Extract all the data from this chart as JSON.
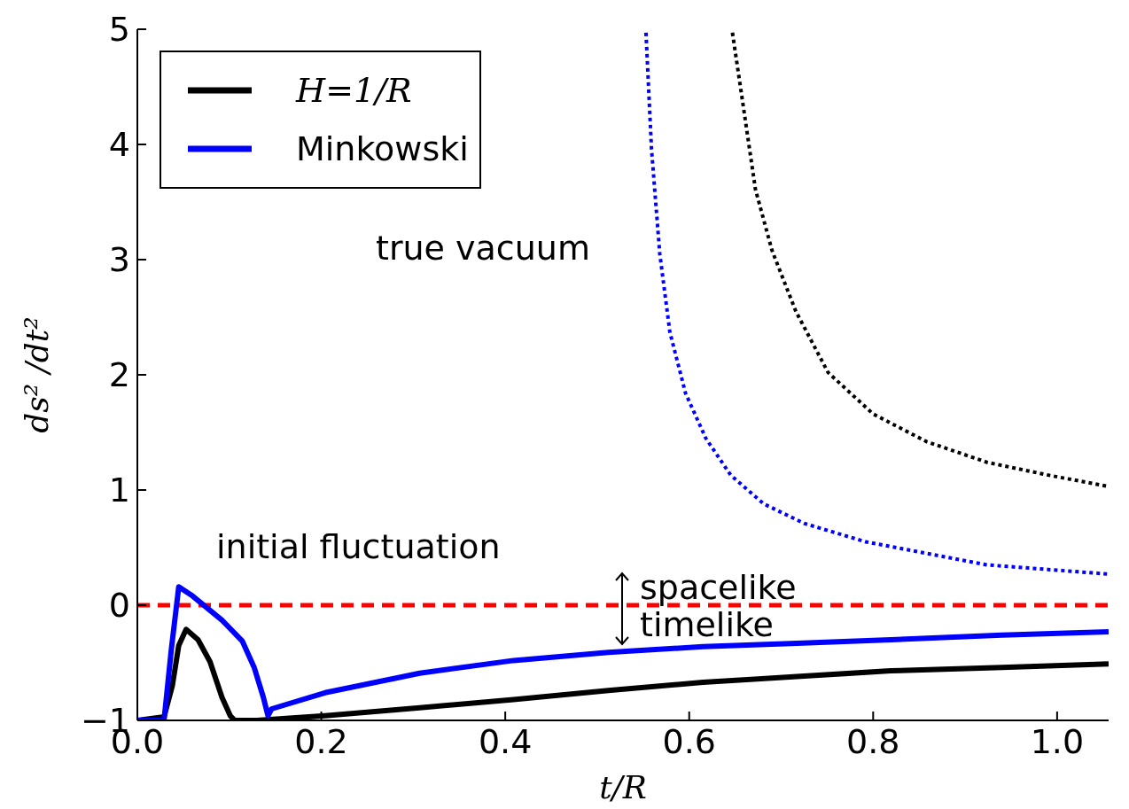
{
  "chart_data": {
    "type": "line",
    "xlabel": "t/R",
    "ylabel": "ds² /dt²",
    "xlim": [
      0,
      1.056
    ],
    "xticks": [
      {
        "value": 0,
        "label": "0.0"
      },
      {
        "value": 0.2,
        "label": "0.2"
      },
      {
        "value": 0.4,
        "label": "0.4"
      },
      {
        "value": 0.6,
        "label": "0.6"
      },
      {
        "value": 0.8,
        "label": "0.8"
      },
      {
        "value": 1,
        "label": "1.0"
      }
    ],
    "ylim": [
      -1,
      5
    ],
    "yticks": [
      {
        "value": -1,
        "label": "−1"
      },
      0,
      1,
      2,
      3,
      4,
      5
    ],
    "legend": "top left",
    "marker": "none",
    "series": [
      {
        "name": "H=1/R",
        "color": "#000000",
        "line_style": "solid",
        "x": [
          0,
          0.029,
          0.038,
          0.045,
          0.053,
          0.066,
          0.079,
          0.092,
          0.101,
          0.106,
          0.13,
          0.204,
          0.307,
          0.409,
          0.512,
          0.615,
          0.717,
          0.819,
          0.94,
          1.056
        ],
        "values": [
          -1,
          -0.97,
          -0.7,
          -0.35,
          -0.21,
          -0.3,
          -0.49,
          -0.8,
          -0.96,
          -1,
          -1,
          -0.96,
          -0.89,
          -0.82,
          -0.74,
          -0.67,
          -0.62,
          -0.57,
          -0.54,
          -0.51
        ]
      },
      {
        "name": "Minkowski",
        "color": "#0000ff",
        "line_style": "solid",
        "x": [
          0,
          0.029,
          0.037,
          0.045,
          0.06,
          0.092,
          0.114,
          0.127,
          0.137,
          0.142,
          0.146,
          0.204,
          0.307,
          0.409,
          0.512,
          0.615,
          0.717,
          0.819,
          0.94,
          1.056
        ],
        "values": [
          -1,
          -1,
          -0.38,
          0.16,
          0.08,
          -0.13,
          -0.31,
          -0.54,
          -0.8,
          -0.96,
          -0.9,
          -0.76,
          -0.59,
          -0.48,
          -0.41,
          -0.36,
          -0.33,
          -0.3,
          -0.26,
          -0.23
        ]
      },
      {
        "color": "#0000ff",
        "line_style": "dotted",
        "x": [
          0.553,
          0.559,
          0.568,
          0.579,
          0.596,
          0.618,
          0.645,
          0.681,
          0.725,
          0.792,
          0.858,
          0.924,
          0.99,
          1.056
        ],
        "values": [
          4.97,
          3.96,
          3.05,
          2.37,
          1.84,
          1.45,
          1.13,
          0.88,
          0.71,
          0.55,
          0.45,
          0.35,
          0.31,
          0.27
        ]
      },
      {
        "color": "#000000",
        "line_style": "dotted",
        "x": [
          0.647,
          0.659,
          0.672,
          0.69,
          0.716,
          0.751,
          0.8,
          0.858,
          0.924,
          0.99,
          1.056
        ],
        "values": [
          4.97,
          4.32,
          3.61,
          3.08,
          2.55,
          2.02,
          1.66,
          1.42,
          1.24,
          1.13,
          1.03
        ]
      }
    ],
    "ref_lines": [
      {
        "axis": "y",
        "value": 0,
        "color": "#ff0000",
        "line_style": "dashed"
      }
    ],
    "annotations": [
      "true vacuum",
      "initial fluctuation",
      "spacelike",
      "timelike"
    ]
  }
}
